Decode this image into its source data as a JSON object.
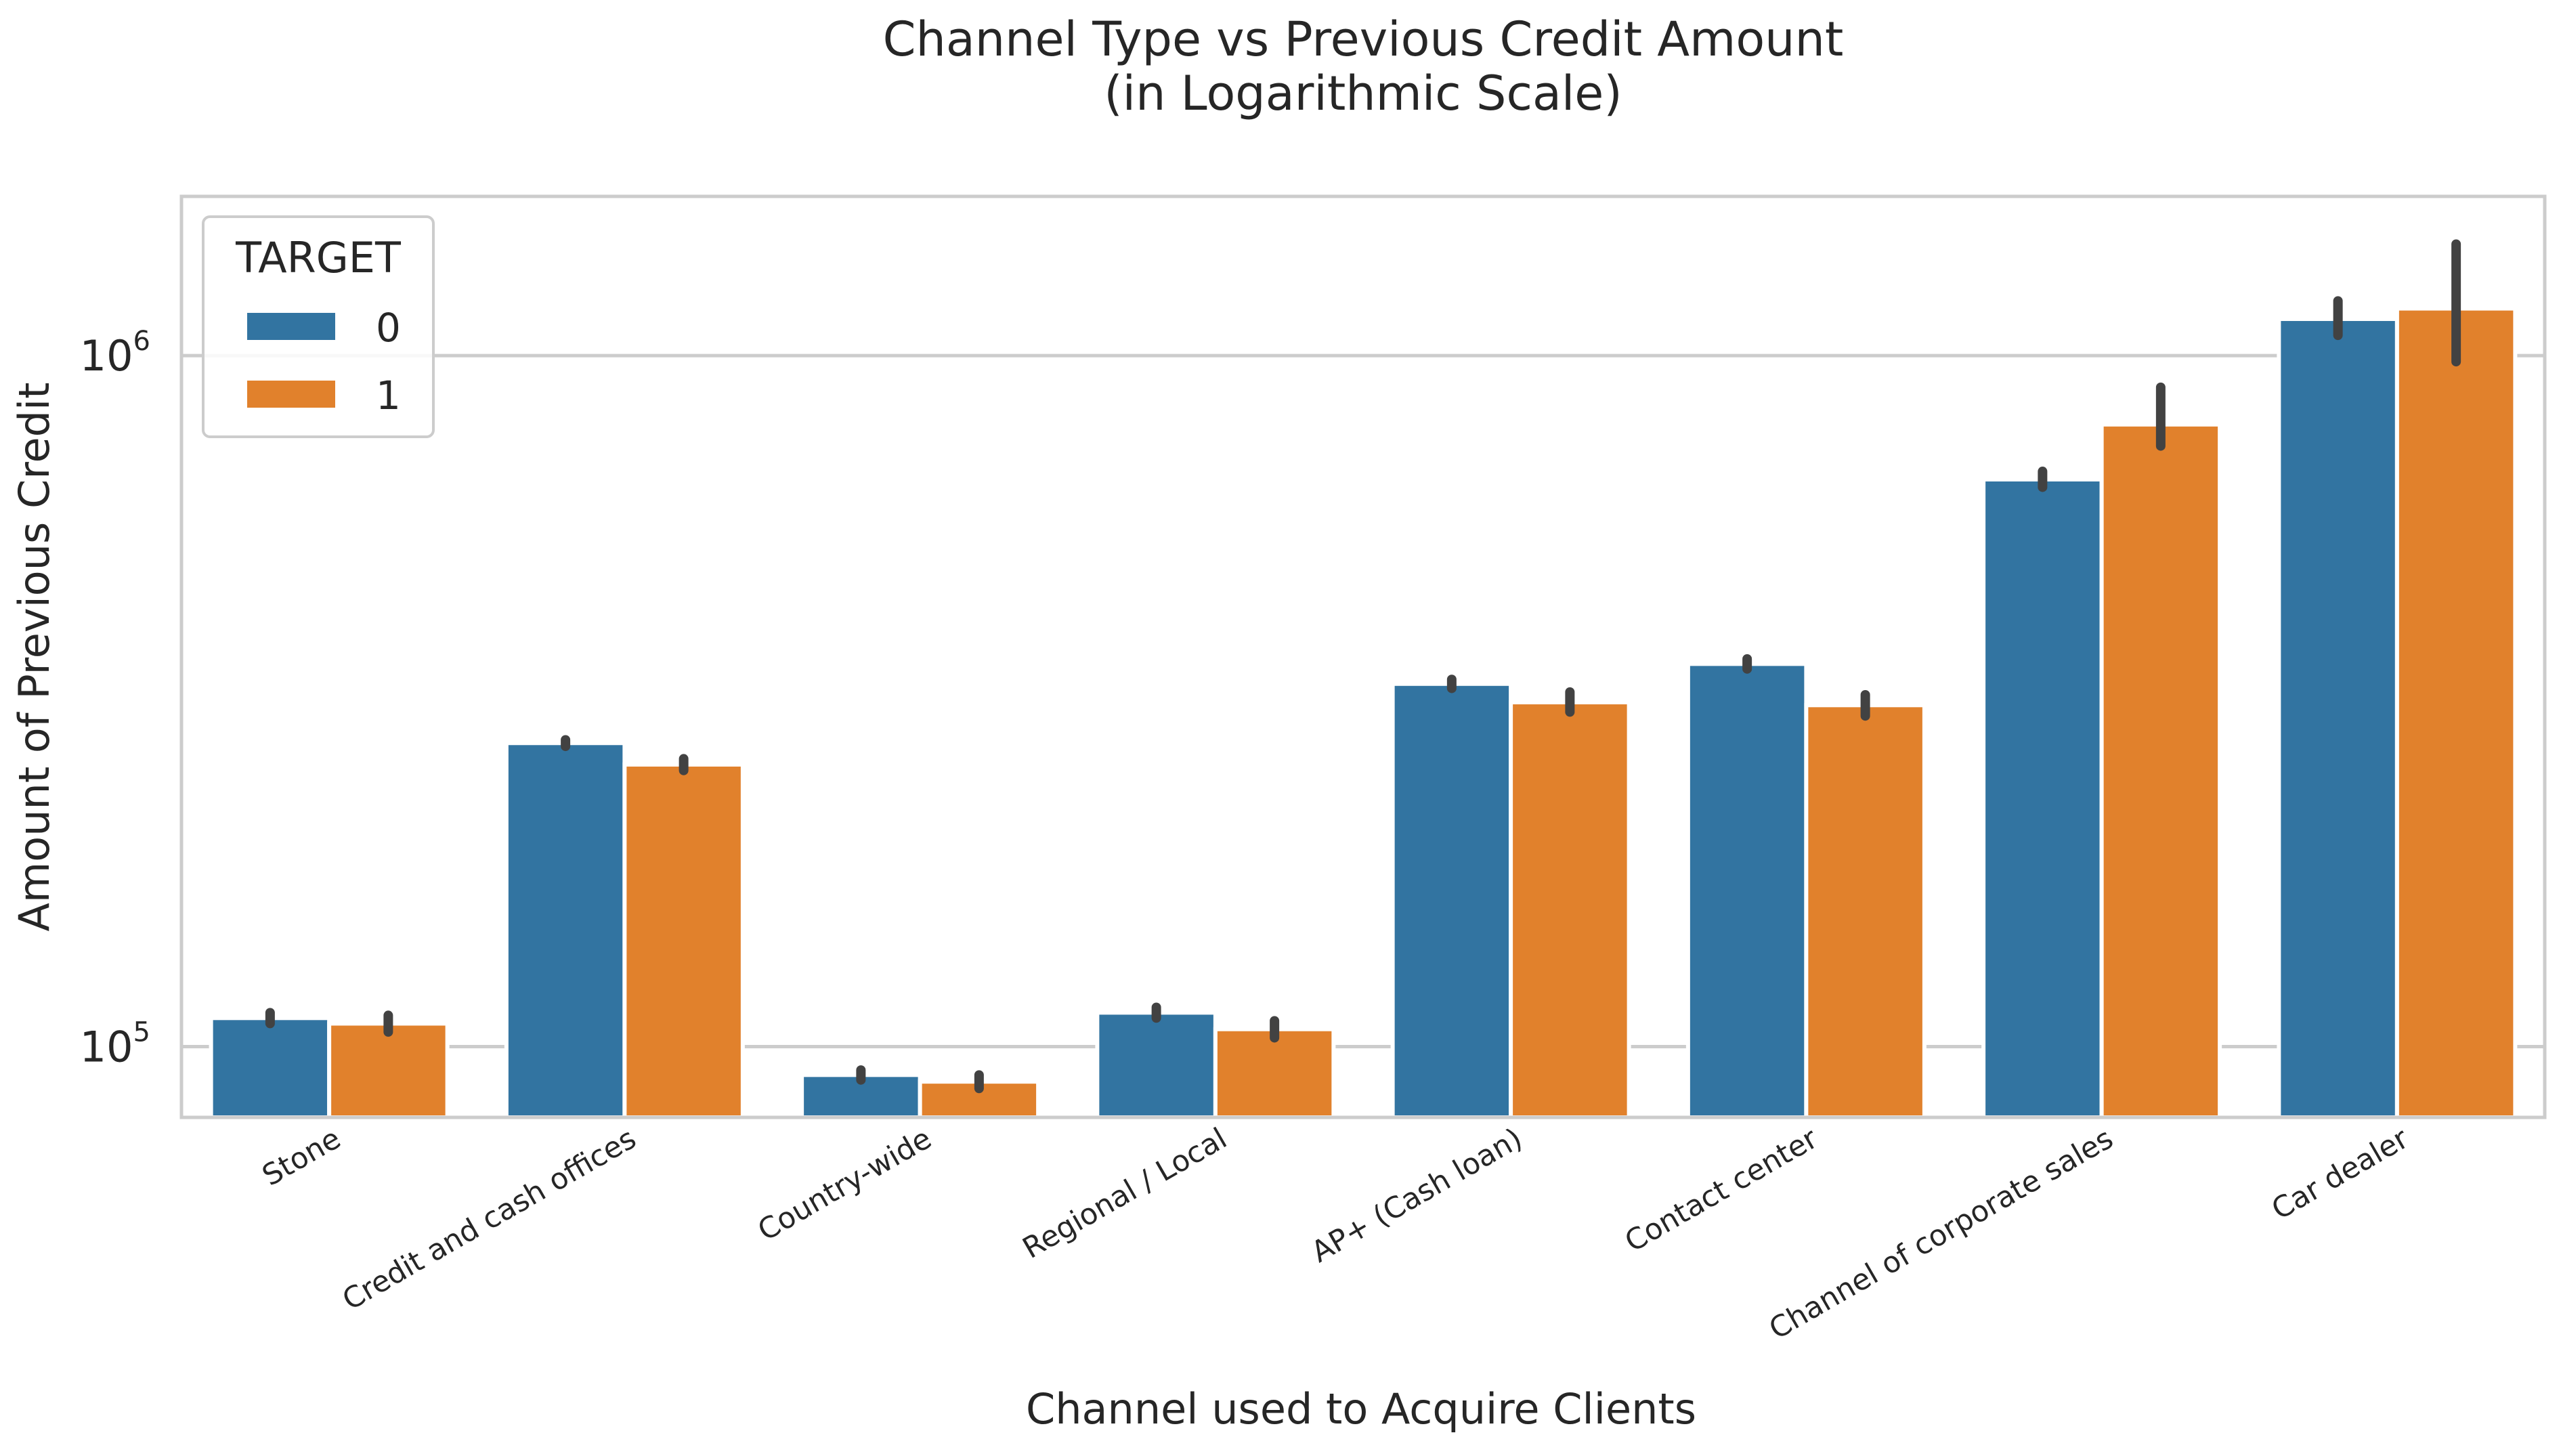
{
  "chart_data": {
    "type": "bar",
    "title": [
      "Channel Type vs Previous Credit Amount",
      "(in Logarithmic Scale)"
    ],
    "xlabel": "Channel used to Acquire Clients",
    "ylabel": "Amount of Previous Credit",
    "yscale": "log",
    "ylim": [
      79000,
      1700000
    ],
    "yticks": [
      {
        "value": 100000,
        "base": "10",
        "exp": "5"
      },
      {
        "value": 1000000,
        "base": "10",
        "exp": "6"
      }
    ],
    "grid": "horizontal",
    "legend": {
      "title": "TARGET",
      "placement": "top-left"
    },
    "categories": [
      "Stone",
      "Credit and cash offices",
      "Country-wide",
      "Regional / Local",
      "AP+ (Cash loan)",
      "Contact center",
      "Channel of corporate sales",
      "Car dealer"
    ],
    "series": [
      {
        "name": "0",
        "color": "#3274a1",
        "values": [
          110000,
          275000,
          91000,
          112000,
          335000,
          358000,
          662000,
          1130000
        ],
        "ci": [
          [
            108000,
            112000
          ],
          [
            272000,
            278000
          ],
          [
            89500,
            92500
          ],
          [
            110000,
            114000
          ],
          [
            330000,
            340000
          ],
          [
            352000,
            364000
          ],
          [
            645000,
            680000
          ],
          [
            1070000,
            1200000
          ]
        ]
      },
      {
        "name": "1",
        "color": "#e1812c",
        "values": [
          108000,
          256000,
          89000,
          106000,
          315000,
          312000,
          795000,
          1170000
        ],
        "ci": [
          [
            105000,
            111000
          ],
          [
            251000,
            261000
          ],
          [
            87000,
            91000
          ],
          [
            103000,
            109000
          ],
          [
            305000,
            326000
          ],
          [
            301000,
            323000
          ],
          [
            740000,
            900000
          ],
          [
            980000,
            1450000
          ]
        ]
      }
    ]
  }
}
